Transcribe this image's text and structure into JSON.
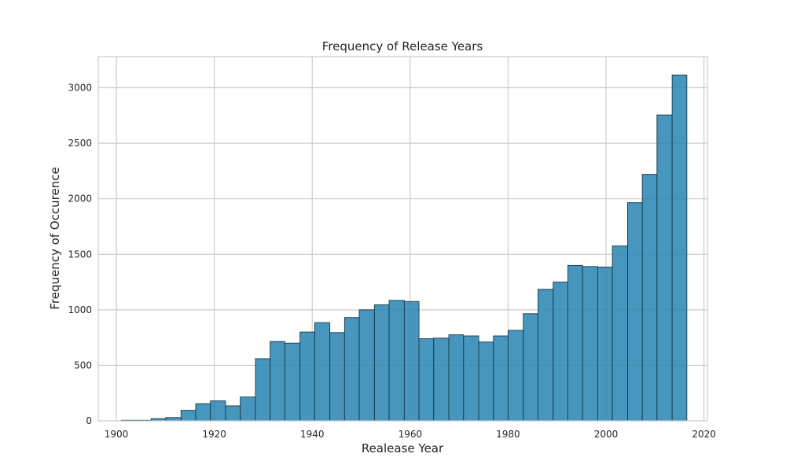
{
  "chart_data": {
    "type": "bar",
    "subtype": "histogram",
    "title": "Frequency of Release Years",
    "xlabel": "Realease Year",
    "ylabel": "Frequency of Occurence",
    "xlim": [
      1896.3,
      2020.7
    ],
    "ylim": [
      0,
      3280
    ],
    "xticks": [
      1900,
      1920,
      1940,
      1960,
      1980,
      2000,
      2020
    ],
    "yticks": [
      0,
      500,
      1000,
      1500,
      2000,
      2500,
      3000
    ],
    "grid": true,
    "bar_color": "#2c88b4",
    "edge_color": "#1c3a4a",
    "bins": [
      {
        "start": 1901.0,
        "end": 1904.0,
        "value": 5
      },
      {
        "start": 1904.0,
        "end": 1907.1,
        "value": 5
      },
      {
        "start": 1907.1,
        "end": 1910.1,
        "value": 20
      },
      {
        "start": 1910.1,
        "end": 1913.2,
        "value": 30
      },
      {
        "start": 1913.2,
        "end": 1916.2,
        "value": 95
      },
      {
        "start": 1916.2,
        "end": 1919.2,
        "value": 155
      },
      {
        "start": 1919.2,
        "end": 1922.3,
        "value": 180
      },
      {
        "start": 1922.3,
        "end": 1925.3,
        "value": 135
      },
      {
        "start": 1925.3,
        "end": 1928.4,
        "value": 215
      },
      {
        "start": 1928.4,
        "end": 1931.4,
        "value": 560
      },
      {
        "start": 1931.4,
        "end": 1934.4,
        "value": 715
      },
      {
        "start": 1934.4,
        "end": 1937.5,
        "value": 700
      },
      {
        "start": 1937.5,
        "end": 1940.5,
        "value": 800
      },
      {
        "start": 1940.5,
        "end": 1943.6,
        "value": 885
      },
      {
        "start": 1943.6,
        "end": 1946.6,
        "value": 795
      },
      {
        "start": 1946.6,
        "end": 1949.6,
        "value": 930
      },
      {
        "start": 1949.6,
        "end": 1952.7,
        "value": 1000
      },
      {
        "start": 1952.7,
        "end": 1955.7,
        "value": 1045
      },
      {
        "start": 1955.7,
        "end": 1958.8,
        "value": 1085
      },
      {
        "start": 1958.8,
        "end": 1961.8,
        "value": 1075
      },
      {
        "start": 1961.8,
        "end": 1964.8,
        "value": 740
      },
      {
        "start": 1964.8,
        "end": 1967.9,
        "value": 745
      },
      {
        "start": 1967.9,
        "end": 1970.9,
        "value": 775
      },
      {
        "start": 1970.9,
        "end": 1974.0,
        "value": 765
      },
      {
        "start": 1974.0,
        "end": 1977.0,
        "value": 710
      },
      {
        "start": 1977.0,
        "end": 1980.0,
        "value": 765
      },
      {
        "start": 1980.0,
        "end": 1983.1,
        "value": 815
      },
      {
        "start": 1983.1,
        "end": 1986.1,
        "value": 965
      },
      {
        "start": 1986.1,
        "end": 1989.2,
        "value": 1185
      },
      {
        "start": 1989.2,
        "end": 1992.2,
        "value": 1250
      },
      {
        "start": 1992.2,
        "end": 1995.2,
        "value": 1400
      },
      {
        "start": 1995.2,
        "end": 1998.3,
        "value": 1390
      },
      {
        "start": 1998.3,
        "end": 2001.3,
        "value": 1385
      },
      {
        "start": 2001.3,
        "end": 2004.4,
        "value": 1575
      },
      {
        "start": 2004.4,
        "end": 2007.4,
        "value": 1965
      },
      {
        "start": 2007.4,
        "end": 2010.4,
        "value": 2220
      },
      {
        "start": 2010.4,
        "end": 2013.5,
        "value": 2755
      },
      {
        "start": 2013.5,
        "end": 2016.5,
        "value": 3115
      }
    ]
  }
}
